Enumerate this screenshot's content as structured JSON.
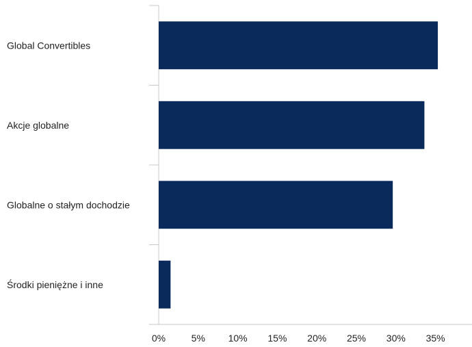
{
  "chart_data": {
    "type": "bar",
    "orientation": "horizontal",
    "categories": [
      "Global Convertibles",
      "Akcje globalne",
      "Globalne o stałym dochodzie",
      "Środki pieniężne i inne"
    ],
    "values": [
      35.3,
      33.6,
      29.6,
      1.5
    ],
    "unit": "%",
    "xlim": [
      0,
      40
    ],
    "xticks": [
      0,
      5,
      10,
      15,
      20,
      25,
      30,
      35
    ],
    "xtick_labels": [
      "0%",
      "5%",
      "10%",
      "15%",
      "20%",
      "25%",
      "30%",
      "35%"
    ],
    "bar_color": "#0b2a5c",
    "axis_color": "#c8c8c8",
    "grid": false,
    "legend": "none",
    "title": "",
    "xlabel": "",
    "ylabel": ""
  }
}
